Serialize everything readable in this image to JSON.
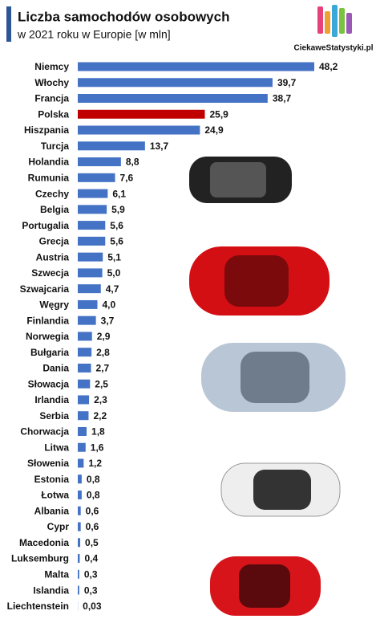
{
  "chart_data": {
    "type": "hbar",
    "title": "Liczba samochodów osobowych",
    "subtitle": "w 2021 roku w Europie [w mln]",
    "source": "CiekaweStatystyki.pl",
    "categories": [
      "Niemcy",
      "Włochy",
      "Francja",
      "Polska",
      "Hiszpania",
      "Turcja",
      "Holandia",
      "Rumunia",
      "Czechy",
      "Belgia",
      "Portugalia",
      "Grecja",
      "Austria",
      "Szwecja",
      "Szwajcaria",
      "Węgry",
      "Finlandia",
      "Norwegia",
      "Bułgaria",
      "Dania",
      "Słowacja",
      "Irlandia",
      "Serbia",
      "Chorwacja",
      "Litwa",
      "Słowenia",
      "Estonia",
      "Łotwa",
      "Albania",
      "Cypr",
      "Macedonia",
      "Luksemburg",
      "Malta",
      "Islandia",
      "Liechtenstein"
    ],
    "values": [
      48.2,
      39.7,
      38.7,
      25.9,
      24.9,
      13.7,
      8.8,
      7.6,
      6.1,
      5.9,
      5.6,
      5.6,
      5.1,
      5.0,
      4.7,
      4.0,
      3.7,
      2.9,
      2.8,
      2.7,
      2.5,
      2.3,
      2.2,
      1.8,
      1.6,
      1.2,
      0.8,
      0.8,
      0.6,
      0.6,
      0.5,
      0.4,
      0.3,
      0.3,
      0.03
    ],
    "value_labels": [
      "48,2",
      "39,7",
      "38,7",
      "25,9",
      "24,9",
      "13,7",
      "8,8",
      "7,6",
      "6,1",
      "5,9",
      "5,6",
      "5,6",
      "5,1",
      "5,0",
      "4,7",
      "4,0",
      "3,7",
      "2,9",
      "2,8",
      "2,7",
      "2,5",
      "2,3",
      "2,2",
      "1,8",
      "1,6",
      "1,2",
      "0,8",
      "0,8",
      "0,6",
      "0,6",
      "0,5",
      "0,4",
      "0,3",
      "0,3",
      "0,03"
    ],
    "colors": [
      "#4472c4",
      "#4472c4",
      "#4472c4",
      "#c00000",
      "#4472c4",
      "#4472c4",
      "#4472c4",
      "#4472c4",
      "#4472c4",
      "#4472c4",
      "#4472c4",
      "#4472c4",
      "#4472c4",
      "#4472c4",
      "#4472c4",
      "#4472c4",
      "#4472c4",
      "#4472c4",
      "#4472c4",
      "#4472c4",
      "#4472c4",
      "#4472c4",
      "#4472c4",
      "#4472c4",
      "#4472c4",
      "#4472c4",
      "#4472c4",
      "#4472c4",
      "#4472c4",
      "#4472c4",
      "#4472c4",
      "#4472c4",
      "#4472c4",
      "#4472c4",
      "#4472c4"
    ]
  }
}
